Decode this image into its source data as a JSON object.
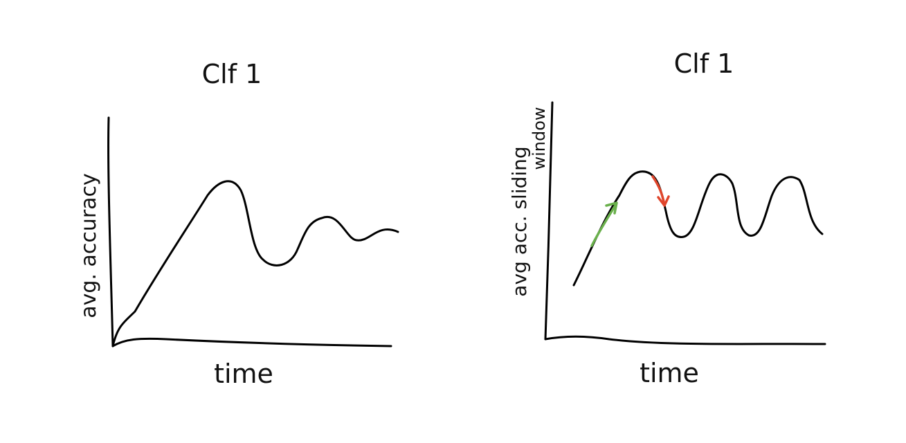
{
  "sketches": [
    {
      "title": "Clf 1",
      "ylabel": "avg. accuracy",
      "xlabel": "time"
    },
    {
      "title": "Clf 1",
      "ylabel_line1": "avg acc. sliding",
      "ylabel_line2": "window",
      "xlabel": "time",
      "arrows": [
        {
          "name": "rising-arrow",
          "color": "#6ab04c"
        },
        {
          "name": "falling-arrow",
          "color": "#e0452b"
        }
      ]
    }
  ],
  "colors": {
    "ink": "#000000",
    "rise": "#6ab04c",
    "fall": "#e0452b"
  }
}
